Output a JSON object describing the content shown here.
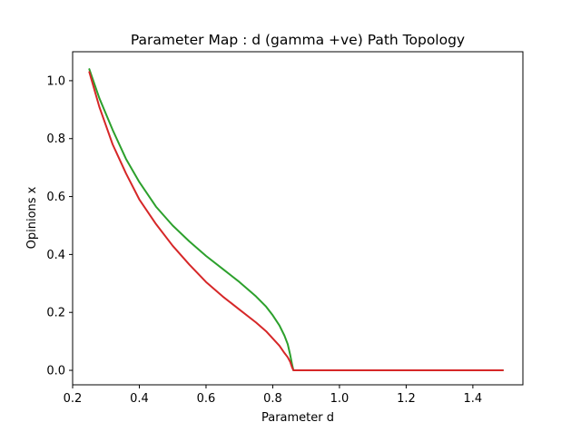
{
  "chart_data": {
    "type": "line",
    "title": "Parameter Map : d (gamma +ve) Path Topology",
    "xlabel": "Parameter d",
    "ylabel": "Opinions x",
    "xlim": [
      0.2,
      1.55
    ],
    "ylim": [
      -0.05,
      1.1
    ],
    "xticks": [
      0.2,
      0.4,
      0.6,
      0.8,
      1.0,
      1.2,
      1.4
    ],
    "xtick_labels": [
      "0.2",
      "0.4",
      "0.6",
      "0.8",
      "1.0",
      "1.2",
      "1.4"
    ],
    "yticks": [
      0.0,
      0.2,
      0.4,
      0.6,
      0.8,
      1.0
    ],
    "ytick_labels": [
      "0.0",
      "0.2",
      "0.4",
      "0.6",
      "0.8",
      "1.0"
    ],
    "grid": false,
    "series": [
      {
        "color": "#2ca02c",
        "x": [
          0.25,
          0.28,
          0.32,
          0.36,
          0.4,
          0.45,
          0.5,
          0.55,
          0.6,
          0.65,
          0.7,
          0.75,
          0.78,
          0.8,
          0.82,
          0.835,
          0.845,
          0.852,
          0.858,
          0.862,
          0.9,
          1.0,
          1.2,
          1.4,
          1.49
        ],
        "y": [
          1.04,
          0.94,
          0.83,
          0.73,
          0.65,
          0.565,
          0.5,
          0.445,
          0.395,
          0.35,
          0.305,
          0.255,
          0.22,
          0.19,
          0.155,
          0.12,
          0.09,
          0.055,
          0.02,
          0.0,
          0.0,
          0.0,
          0.0,
          0.0,
          0.0
        ]
      },
      {
        "color": "#d62728",
        "x": [
          0.25,
          0.28,
          0.32,
          0.36,
          0.4,
          0.45,
          0.5,
          0.55,
          0.6,
          0.65,
          0.7,
          0.75,
          0.78,
          0.8,
          0.82,
          0.835,
          0.845,
          0.852,
          0.858,
          0.862,
          0.9,
          1.0,
          1.2,
          1.4,
          1.49
        ],
        "y": [
          1.03,
          0.91,
          0.78,
          0.68,
          0.59,
          0.505,
          0.43,
          0.365,
          0.305,
          0.255,
          0.21,
          0.165,
          0.135,
          0.11,
          0.085,
          0.06,
          0.045,
          0.03,
          0.01,
          0.0,
          0.0,
          0.0,
          0.0,
          0.0,
          0.0
        ]
      }
    ]
  }
}
